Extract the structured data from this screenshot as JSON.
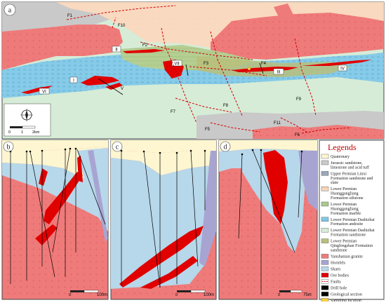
{
  "panels": {
    "a": {
      "label": "a"
    },
    "b": {
      "label": "b",
      "scale_label": "100m",
      "scale_zero": "0"
    },
    "c": {
      "label": "c",
      "scale_label": "100m",
      "scale_zero": "0"
    },
    "d": {
      "label": "d",
      "scale_label": "75m",
      "scale_zero": "0"
    }
  },
  "map_a": {
    "scale": {
      "zero": "0",
      "one": "1",
      "two": "2km"
    },
    "faults": [
      "F1",
      "F10",
      "F2",
      "F3",
      "F4",
      "F7",
      "F8",
      "F9",
      "F5",
      "F11",
      "F6"
    ],
    "ore_bodies": [
      "I",
      "II",
      "III",
      "IV",
      "V",
      "VI",
      "VII"
    ]
  },
  "legend": {
    "title": "Legends",
    "items": [
      {
        "color": "#fdf6d0",
        "label": "Quaternary"
      },
      {
        "color": "#c9c9c9",
        "label": "Jurassic sandstone, limestone and acid tuff"
      },
      {
        "color": "#9aa7ba",
        "label": "Upper Permian Linxi Formation sandstone and slate"
      },
      {
        "color": "#f7d4b8",
        "label": "Lower Permian Huanggangliang Formation siltstone"
      },
      {
        "color": "#a9c98f",
        "label": "Lower Permian Huanggangliang Formation marble"
      },
      {
        "color": "#7fc7e6",
        "label": "Lower Permian Dashizhai Formation andesite"
      },
      {
        "color": "#d6ecd7",
        "label": "Lower Permian Dashizhai Formation sandstone"
      },
      {
        "color": "#b9bf7a",
        "label": "Lower Permian Qingfengshan Formation sandstone"
      },
      {
        "color": "#ef7a7a",
        "label": "Yanshanian granite"
      },
      {
        "color": "#a8a4d2",
        "label": "Hornfels"
      },
      {
        "color": "#b7d7ea",
        "label": "Skarn"
      },
      {
        "color": "#e00000",
        "label": "Ore bodies"
      },
      {
        "color": "#d00000",
        "label": "Faults"
      },
      {
        "color": "#000000",
        "label": "Drill hole"
      },
      {
        "color": "#000000",
        "label": "Geological section"
      },
      {
        "color": "#f5cf43",
        "label": "Sampling location"
      }
    ]
  },
  "colors": {
    "granite": "#ef7a7a",
    "andesite": "#7fc7e6",
    "sandstone_pale": "#d6ecd7",
    "siltstone": "#f7d4b8",
    "marble": "#a9c98f",
    "jurassic": "#c9c9c9",
    "quaternary": "#fdf6d0",
    "hornfels": "#a8a4d2",
    "skarn": "#b7d7ea",
    "ore": "#e00000",
    "fault": "#d00000"
  }
}
